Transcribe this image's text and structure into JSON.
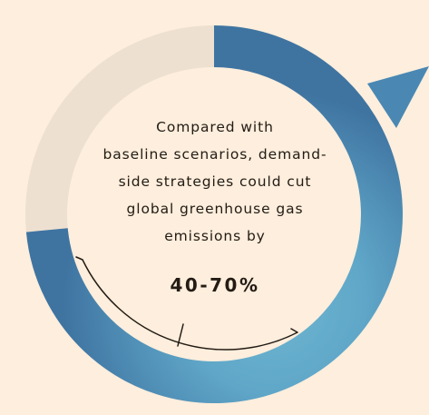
{
  "statement": {
    "lines": [
      "Compared with",
      "baseline scenarios, demand-",
      "side strategies could cut",
      "global greenhouse gas",
      "emissions by"
    ],
    "value": "40-70%"
  },
  "ring": {
    "range_low": 40,
    "range_high": 70,
    "colors": {
      "background": "#fdeedd",
      "track": "#eee0d0",
      "arc_dark": "#3f77a3",
      "arc_light": "#69b1cc",
      "bracket": "#231b14"
    }
  }
}
